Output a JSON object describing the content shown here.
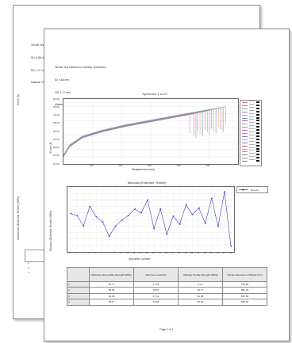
{
  "back_page": {
    "header_lines": [
      "Tensile Test",
      "SD: 0.88 mm",
      "DN: 1.27 mm",
      "Material: True Siron"
    ],
    "side_labels": {
      "force": "Force (N)",
      "strength": "Widthscale (Extensile Tensile) (MPa)"
    },
    "row_labels": [
      "1",
      "2",
      "3"
    ]
  },
  "front_page": {
    "header_lines": [
      "Tensile Test Method for Catheter Specimens",
      "ID: 0.88 mm",
      "OD: 1.27 mm",
      "Material: True Siron Polyethylene"
    ],
    "footer": "Page 1 of 1"
  },
  "force_chart": {
    "title": "Specimen 1 to 20",
    "ylabel": "Force (N)",
    "xlabel": "Displacement (mm)",
    "yticks": [
      "50.00",
      "45.00",
      "40.00",
      "35.00",
      "30.00",
      "25.00",
      "20.00",
      "15.00",
      "10.00"
    ],
    "xticks": [
      "100",
      "200",
      "300",
      "400",
      "500"
    ],
    "legend_entries": [
      "Specimen 1",
      "Specimen 2",
      "Specimen 3",
      "Specimen 4",
      "Specimen 5",
      "Specimen 6",
      "Specimen 7",
      "Specimen 8",
      "Specimen 9",
      "Specimen 10",
      "Specimen 11",
      "Specimen 12",
      "Specimen 13",
      "Specimen 14",
      "Specimen 15",
      "Specimen 16",
      "Specimen 17",
      "Specimen 18",
      "Specimen 19",
      "Specimen 20"
    ]
  },
  "strength_chart": {
    "title": "Modulus (Extensile Tensile)",
    "ylabel": "Modulus (Extensile Tensile) (MPa)",
    "xlabel": "Specimen number",
    "legend_label": "Results"
  },
  "results_table": {
    "headers": [
      "",
      "Maximum Extensible Strength (MPa)",
      "Maximum Load (N)",
      "Ultimate Tensile Strength (MPa)",
      "Tensile Extension at Break (mm)"
    ],
    "rows": [
      [
        "1",
        "45.77",
        "17.62",
        "51.2",
        "704.62"
      ],
      [
        "2",
        "38.36",
        "18.97",
        "46.17",
        "582.23"
      ],
      [
        "3",
        "26.49",
        "17.31",
        "52.06",
        "597.60"
      ],
      [
        "4",
        "38.17",
        "15.66",
        "36.02",
        "556.02"
      ]
    ]
  },
  "colors": {
    "page_border": "#8a8a8a",
    "series_line": "#3b3bd6",
    "table_header_bg": "#e6e6e6",
    "curve_palette": [
      "#d873b8",
      "#c75fa9",
      "#6fb07d",
      "#9f6fd8",
      "#e2a04c",
      "#5a8fd6",
      "#d65a5a",
      "#5ac7c7"
    ]
  },
  "chart_data": [
    {
      "type": "line",
      "title": "Specimen 1 to 20",
      "xlabel": "Displacement (mm)",
      "ylabel": "Force (N)",
      "xlim": [
        0,
        560
      ],
      "ylim": [
        5,
        50
      ],
      "grid": true,
      "legend": "right",
      "series": [
        {
          "name": "Specimen 1",
          "x": [
            0,
            20,
            60,
            120,
            200,
            300,
            400,
            480,
            530
          ],
          "y": [
            10,
            17,
            23,
            27,
            31,
            35,
            39,
            42,
            44
          ]
        }
      ],
      "break_x": [
        405,
        418,
        425,
        430,
        438,
        447,
        455,
        462,
        468,
        474,
        481,
        489,
        497,
        505,
        512,
        520
      ]
    },
    {
      "type": "line",
      "title": "Modulus (Extensile Tensile)",
      "xlabel": "Specimen number",
      "ylabel": "Modulus (Extensile Tensile) (MPa)",
      "ylim": [
        150,
        350
      ],
      "grid": true,
      "legend": "top-right",
      "categories": [
        "1",
        "2",
        "3",
        "4",
        "5",
        "6",
        "7",
        "8",
        "9",
        "10",
        "11",
        "12",
        "13",
        "14",
        "15",
        "16",
        "17",
        "18",
        "19",
        "20",
        "21",
        "22",
        "23",
        "24",
        "25",
        "26"
      ],
      "series": [
        {
          "name": "Results",
          "values": [
            268,
            262,
            230,
            290,
            258,
            242,
            198,
            230,
            248,
            262,
            282,
            270,
            310,
            222,
            282,
            205,
            260,
            235,
            295,
            265,
            285,
            238,
            315,
            228,
            335,
            168
          ]
        }
      ]
    }
  ]
}
